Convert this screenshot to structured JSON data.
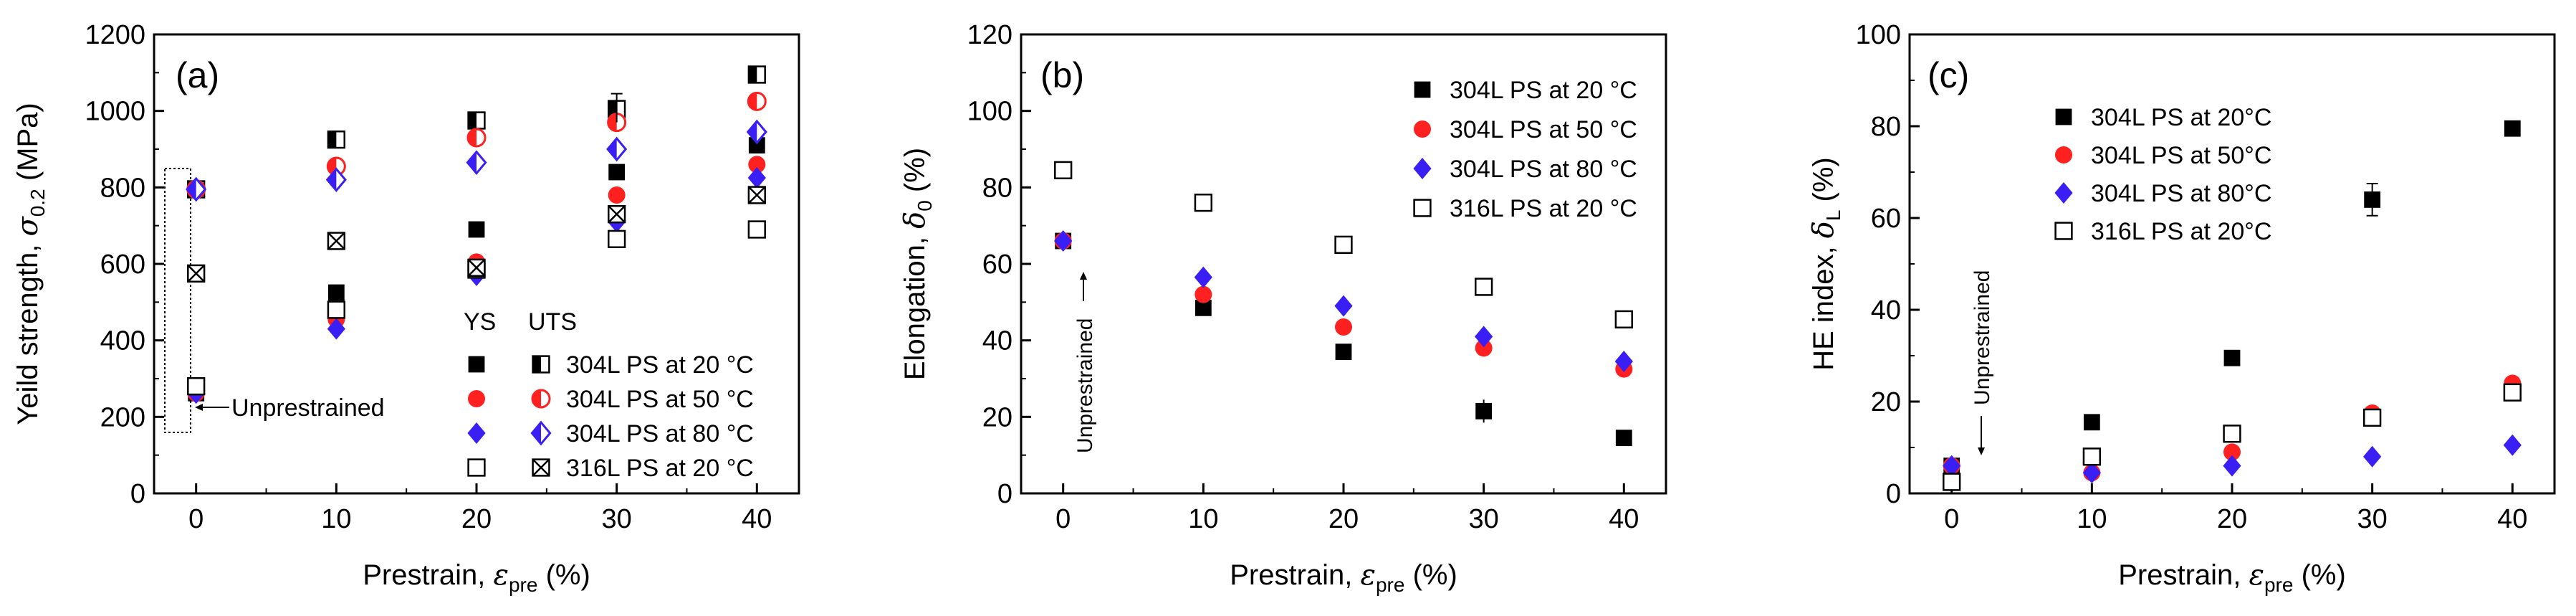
{
  "colors": {
    "s304_20": "#000000",
    "s304_50": "#ff2020",
    "s304_80": "#3a1ff5",
    "s316_20": "#000000",
    "marker_edge": "#000000"
  },
  "chart_data": [
    {
      "type": "scatter",
      "panel_label": "(a)",
      "ylabel_main": "Yeild strength, ",
      "ylabel_symbol": "σ",
      "ylabel_sub": "0.2",
      "ylabel_unit": " (MPa)",
      "xlabel_main": "Prestrain, ",
      "xlabel_symbol": "ε",
      "xlabel_sub": "pre",
      "xlabel_unit": " (%)",
      "x_ticks": [
        "0",
        "10",
        "20",
        "30",
        "40"
      ],
      "y_ticks": [
        "0",
        "200",
        "400",
        "600",
        "800",
        "1000",
        "1200"
      ],
      "xlim": [
        -3,
        43
      ],
      "ylim": [
        0,
        1200
      ],
      "legend_header_ys": "YS",
      "legend_header_uts": "UTS",
      "annotation": "Unprestrained",
      "series": [
        {
          "name": "304L PS at 20 °C",
          "shape": "square",
          "color_key": "s304_20",
          "ys": [
            [
              0,
              262
            ],
            [
              10,
              525
            ],
            [
              20,
              690
            ],
            [
              30,
              840
            ],
            [
              40,
              910
            ]
          ],
          "uts": [
            [
              0,
              795
            ],
            [
              10,
              925
            ],
            [
              20,
              975
            ],
            [
              30,
              1005
            ],
            [
              40,
              1095
            ]
          ]
        },
        {
          "name": "304L PS at 50 °C",
          "shape": "circle",
          "color_key": "s304_50",
          "ys": [
            [
              0,
              262
            ],
            [
              10,
              455
            ],
            [
              20,
              605
            ],
            [
              30,
              780
            ],
            [
              40,
              860
            ]
          ],
          "uts": [
            [
              0,
              795
            ],
            [
              10,
              855
            ],
            [
              20,
              930
            ],
            [
              30,
              970
            ],
            [
              40,
              1025
            ]
          ]
        },
        {
          "name": "304L PS at 80 °C",
          "shape": "diamond",
          "color_key": "s304_80",
          "ys": [
            [
              0,
              262
            ],
            [
              10,
              430
            ],
            [
              20,
              570
            ],
            [
              30,
              710
            ],
            [
              40,
              825
            ]
          ],
          "uts": [
            [
              0,
              795
            ],
            [
              10,
              820
            ],
            [
              20,
              865
            ],
            [
              30,
              900
            ],
            [
              40,
              945
            ]
          ]
        },
        {
          "name": "316L PS at 20 °C",
          "shape": "square-open",
          "color_key": "s316_20",
          "ys": [
            [
              0,
              280
            ],
            [
              10,
              480
            ],
            [
              20,
              585
            ],
            [
              30,
              665
            ],
            [
              40,
              690
            ]
          ],
          "uts": [
            [
              0,
              575
            ],
            [
              10,
              660
            ],
            [
              20,
              590
            ],
            [
              30,
              730
            ],
            [
              40,
              780
            ]
          ]
        }
      ]
    },
    {
      "type": "scatter",
      "panel_label": "(b)",
      "ylabel_main": "Elongation, ",
      "ylabel_symbol": "δ",
      "ylabel_sub": "0",
      "ylabel_unit": " (%)",
      "xlabel_main": "Prestrain, ",
      "xlabel_symbol": "ε",
      "xlabel_sub": "pre",
      "xlabel_unit": " (%)",
      "x_ticks": [
        "0",
        "10",
        "20",
        "30",
        "40"
      ],
      "y_ticks": [
        "0",
        "20",
        "40",
        "60",
        "80",
        "100",
        "120"
      ],
      "xlim": [
        -3,
        43
      ],
      "ylim": [
        0,
        120
      ],
      "annotation": "Unprestrained",
      "series": [
        {
          "name": "304L PS at 20 °C",
          "shape": "square",
          "color_key": "s304_20",
          "points": [
            [
              0,
              66
            ],
            [
              10,
              48.5
            ],
            [
              20,
              37
            ],
            [
              30,
              21.5
            ],
            [
              40,
              14.5
            ]
          ]
        },
        {
          "name": "304L PS at 50 °C",
          "shape": "circle",
          "color_key": "s304_50",
          "points": [
            [
              0,
              66
            ],
            [
              10,
              52
            ],
            [
              20,
              43.5
            ],
            [
              30,
              38
            ],
            [
              40,
              32.5
            ]
          ]
        },
        {
          "name": "304L PS at 80 °C",
          "shape": "diamond",
          "color_key": "s304_80",
          "points": [
            [
              0,
              66
            ],
            [
              10,
              56.5
            ],
            [
              20,
              49
            ],
            [
              30,
              41
            ],
            [
              40,
              34.5
            ]
          ]
        },
        {
          "name": "316L PS at 20 °C",
          "shape": "square-open",
          "color_key": "s316_20",
          "points": [
            [
              0,
              84.5
            ],
            [
              10,
              76
            ],
            [
              20,
              65
            ],
            [
              30,
              54
            ],
            [
              40,
              45.5
            ]
          ]
        }
      ]
    },
    {
      "type": "scatter",
      "panel_label": "(c)",
      "ylabel_main": "HE index, ",
      "ylabel_symbol": "δ",
      "ylabel_sub": "L",
      "ylabel_unit": " (%)",
      "xlabel_main": "Prestrain, ",
      "xlabel_symbol": "ε",
      "xlabel_sub": "pre",
      "xlabel_unit": " (%)",
      "x_ticks": [
        "0",
        "10",
        "20",
        "30",
        "40"
      ],
      "y_ticks": [
        "0",
        "20",
        "40",
        "60",
        "80",
        "100"
      ],
      "xlim": [
        -3,
        43
      ],
      "ylim": [
        0,
        100
      ],
      "annotation": "Unprestrained",
      "series": [
        {
          "name": "304L PS at 20°C",
          "shape": "square",
          "color_key": "s304_20",
          "points": [
            [
              0,
              6
            ],
            [
              10,
              15.5
            ],
            [
              20,
              29.5
            ],
            [
              30,
              64
            ],
            [
              40,
              79.5
            ]
          ]
        },
        {
          "name": "304L PS at 50°C",
          "shape": "circle",
          "color_key": "s304_50",
          "points": [
            [
              0,
              6
            ],
            [
              10,
              4.5
            ],
            [
              20,
              9
            ],
            [
              30,
              17.5
            ],
            [
              40,
              24
            ]
          ]
        },
        {
          "name": "304L PS at 80°C",
          "shape": "diamond",
          "color_key": "s304_80",
          "points": [
            [
              0,
              6
            ],
            [
              10,
              4.5
            ],
            [
              20,
              6
            ],
            [
              30,
              8
            ],
            [
              40,
              10.5
            ]
          ]
        },
        {
          "name": "316L PS at 20°C",
          "shape": "square-open",
          "color_key": "s316_20",
          "points": [
            [
              0,
              2.5
            ],
            [
              10,
              8
            ],
            [
              20,
              13
            ],
            [
              30,
              16.5
            ],
            [
              40,
              22
            ]
          ]
        }
      ]
    }
  ]
}
